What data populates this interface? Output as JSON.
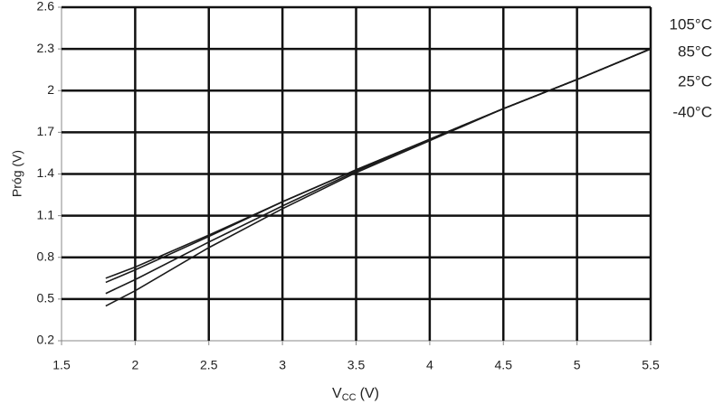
{
  "chart_data": {
    "type": "line",
    "xlabel": {
      "main": "V",
      "sub": "CC",
      "suffix": "(V)"
    },
    "ylabel": "Próg (V)",
    "x": [
      1.8,
      2,
      2.5,
      3,
      3.5,
      4,
      4.5,
      5,
      5.5
    ],
    "series": [
      {
        "name": "105°C",
        "color": "#1a1a1a",
        "values": [
          0.65,
          0.73,
          0.96,
          1.2,
          1.43,
          1.65,
          1.87,
          2.08,
          2.3
        ]
      },
      {
        "name": "85°C",
        "color": "#1a1a1a",
        "values": [
          0.62,
          0.71,
          0.95,
          1.2,
          1.43,
          1.65,
          1.87,
          2.08,
          2.3
        ]
      },
      {
        "name": "25°C",
        "color": "#1a1a1a",
        "values": [
          0.54,
          0.64,
          0.91,
          1.17,
          1.42,
          1.65,
          1.87,
          2.08,
          2.3
        ]
      },
      {
        "name": "-40°C",
        "color": "#1a1a1a",
        "values": [
          0.45,
          0.56,
          0.87,
          1.15,
          1.41,
          1.64,
          1.87,
          2.08,
          2.3
        ]
      }
    ],
    "xlim": [
      1.5,
      5.5
    ],
    "xticks": [
      1.5,
      2,
      2.5,
      3,
      3.5,
      4,
      4.5,
      5,
      5.5
    ],
    "ylim": [
      0.2,
      2.6
    ],
    "yticks": [
      0.2,
      0.5,
      0.8,
      1.1,
      1.4,
      1.7,
      2,
      2.3,
      2.6
    ],
    "grid": true,
    "grid_color": "#111111"
  }
}
